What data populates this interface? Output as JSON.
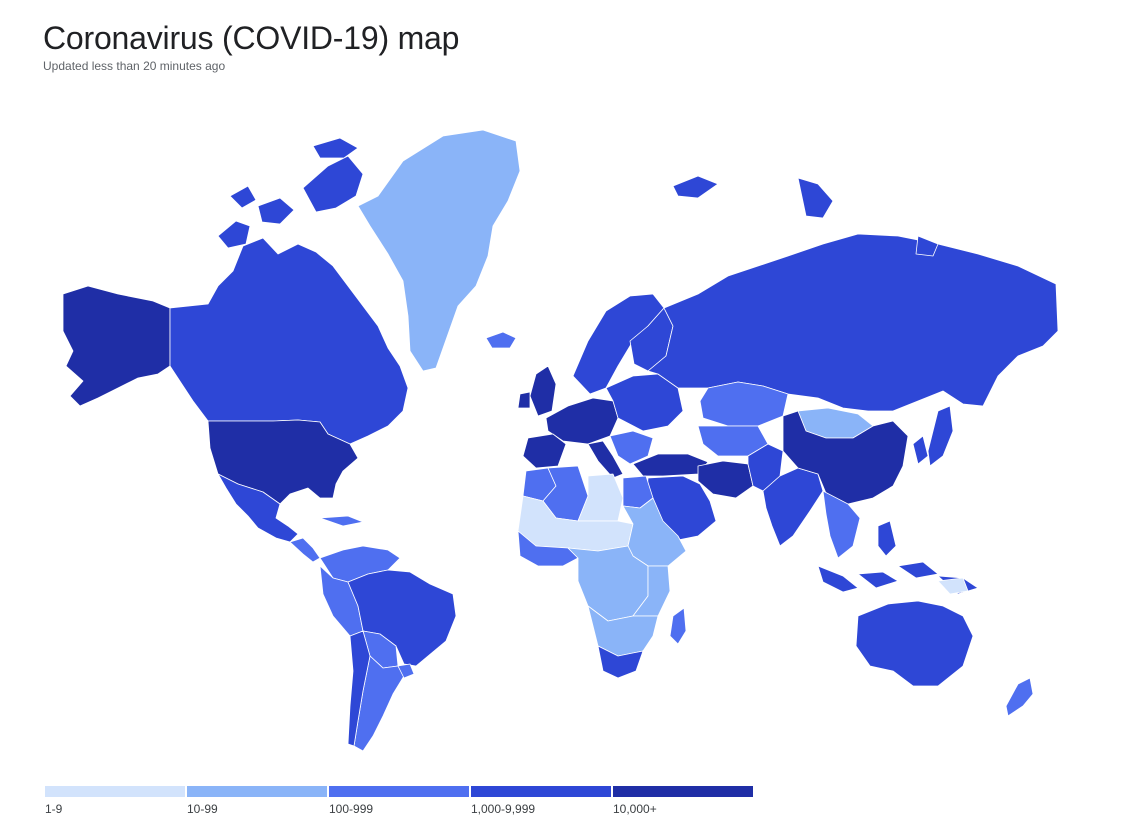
{
  "header": {
    "title": "Coronavirus (COVID-19) map",
    "subtitle": "Updated less than 20 minutes ago"
  },
  "legend": [
    {
      "label": "1-9",
      "color": "#d2e3fc"
    },
    {
      "label": "10-99",
      "color": "#8ab4f8"
    },
    {
      "label": "100-999",
      "color": "#4f6ff0"
    },
    {
      "label": "1,000-9,999",
      "color": "#2e47d6"
    },
    {
      "label": "10,000+",
      "color": "#1f2ea6"
    }
  ],
  "colors": {
    "no_data": "#eeeeee",
    "c1": "#d2e3fc",
    "c2": "#8ab4f8",
    "c3": "#4f6ff0",
    "c4": "#2e47d6",
    "c5": "#1f2ea6"
  }
}
